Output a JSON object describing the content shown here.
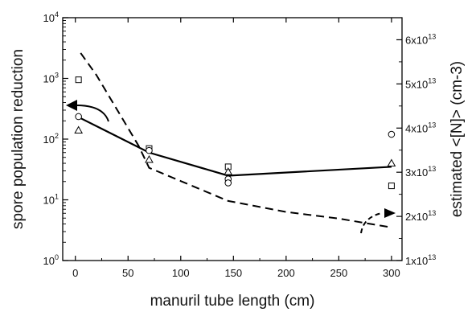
{
  "chart_data": {
    "type": "scatter",
    "xlabel": "manuril tube length (cm)",
    "ylabel_left": "spore population reduction",
    "ylabel_right": "estimated <[N]> (cm-3)",
    "xlim": [
      -12,
      310
    ],
    "xticks": [
      0,
      50,
      100,
      150,
      200,
      250,
      300
    ],
    "ylim_left": [
      1,
      10000
    ],
    "yscale_left": "log",
    "yticks_left": [
      {
        "value": 1,
        "base": "10",
        "exp": "0"
      },
      {
        "value": 10,
        "base": "10",
        "exp": "1"
      },
      {
        "value": 100,
        "base": "10",
        "exp": "2"
      },
      {
        "value": 1000,
        "base": "10",
        "exp": "3"
      },
      {
        "value": 10000,
        "base": "10",
        "exp": "4"
      }
    ],
    "ylim_right": [
      10000000000000.0,
      65000000000000.0
    ],
    "yticks_right": [
      {
        "value": 10000000000000.0,
        "mant": "1x10",
        "exp": "13"
      },
      {
        "value": 20000000000000.0,
        "mant": "2x10",
        "exp": "13"
      },
      {
        "value": 30000000000000.0,
        "mant": "3x10",
        "exp": "13"
      },
      {
        "value": 40000000000000.0,
        "mant": "4x10",
        "exp": "13"
      },
      {
        "value": 50000000000000.0,
        "mant": "5x10",
        "exp": "13"
      },
      {
        "value": 60000000000000.0,
        "mant": "6x10",
        "exp": "13"
      }
    ],
    "markers": {
      "squares": [
        [
          3,
          950
        ],
        [
          70,
          70
        ],
        [
          145,
          35
        ],
        [
          300,
          17
        ]
      ],
      "circles": [
        [
          3,
          235
        ],
        [
          70,
          65
        ],
        [
          145,
          22
        ],
        [
          145,
          19
        ],
        [
          300,
          120
        ]
      ],
      "triangles": [
        [
          3,
          140
        ],
        [
          70,
          46
        ],
        [
          145,
          29
        ],
        [
          300,
          40
        ]
      ]
    },
    "solid_line_left_axis": [
      [
        3,
        230
      ],
      [
        70,
        60
      ],
      [
        145,
        25
      ],
      [
        300,
        35
      ]
    ],
    "dashed_line_right_axis": [
      [
        5,
        57000000000000.0
      ],
      [
        20,
        52000000000000.0
      ],
      [
        45,
        42000000000000.0
      ],
      [
        60,
        36000000000000.0
      ],
      [
        70,
        31000000000000.0
      ],
      [
        100,
        28000000000000.0
      ],
      [
        145,
        23500000000000.0
      ],
      [
        200,
        21000000000000.0
      ],
      [
        250,
        19500000000000.0
      ],
      [
        300,
        17500000000000.0
      ]
    ]
  }
}
